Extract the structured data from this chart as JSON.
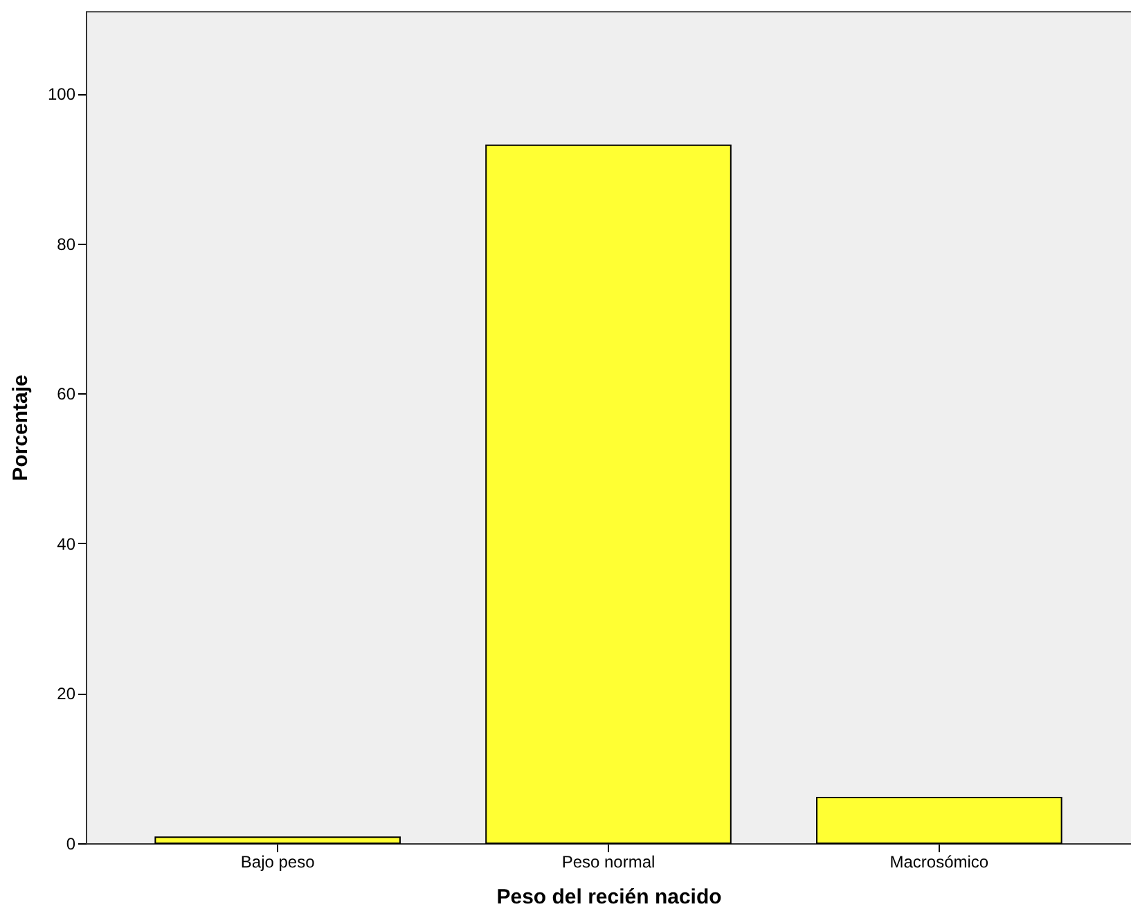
{
  "chart_data": {
    "type": "bar",
    "xlabel": "Peso del recién nacido",
    "ylabel": "Porcentaje",
    "categories": [
      "Bajo peso",
      "Peso normal",
      "Macrosómico"
    ],
    "values": [
      0.8,
      93.1,
      6.1
    ],
    "color": "#ffff33",
    "ylim": [
      0,
      111
    ],
    "yticks": [
      0,
      20,
      40,
      60,
      80,
      100
    ],
    "grid": false
  }
}
